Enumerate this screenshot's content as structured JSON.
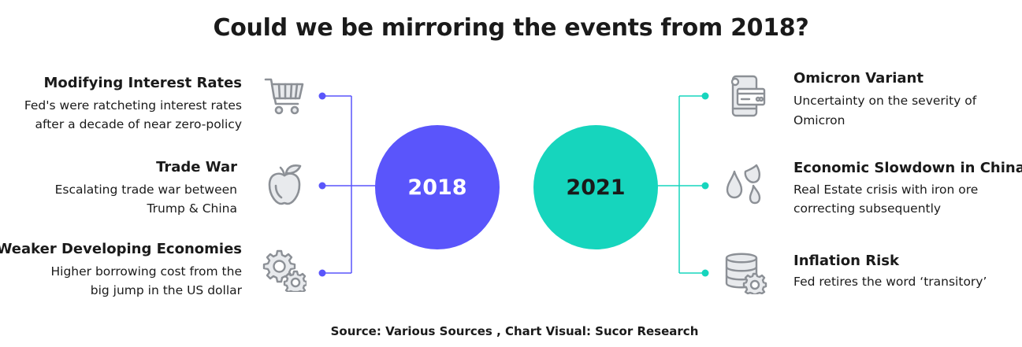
{
  "title": "Could we be mirroring the events from 2018?",
  "source": "Source: Various Sources , Chart Visual: Sucor Research",
  "colors": {
    "left_accent": "#5a55fb",
    "right_accent": "#16d5bd",
    "icon_stroke": "#8c9096",
    "icon_fill": "#e8eaed"
  },
  "left": {
    "year": "2018",
    "items": [
      {
        "title": "Modifying Interest Rates",
        "desc1": "Fed's were ratcheting interest rates",
        "desc2": "after a decade of near zero-policy",
        "icon": "shopping-cart-icon"
      },
      {
        "title": "Trade War",
        "desc1": "Escalating trade war between",
        "desc2": "Trump & China",
        "icon": "apple-icon"
      },
      {
        "title": "Weaker Developing Economies",
        "desc1": "Higher borrowing cost from the",
        "desc2": "big jump in the US dollar",
        "icon": "gears-icon"
      }
    ]
  },
  "right": {
    "year": "2021",
    "items": [
      {
        "title": "Omicron Variant",
        "desc1": "Uncertainty on the severity of",
        "desc2": "Omicron",
        "icon": "phone-card-icon"
      },
      {
        "title": "Economic Slowdown in China",
        "desc1": "Real Estate crisis with iron ore",
        "desc2": "correcting subsequently",
        "icon": "drops-icon"
      },
      {
        "title": "Inflation Risk",
        "desc1": "Fed retires the word ‘transitory’",
        "desc2": "",
        "icon": "database-gear-icon"
      }
    ]
  }
}
